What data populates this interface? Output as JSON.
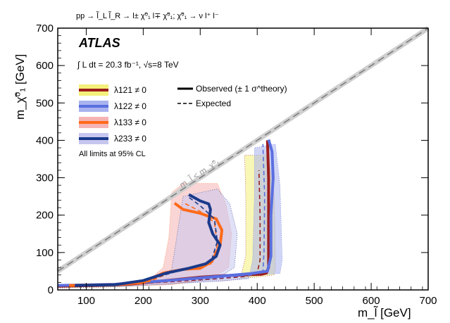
{
  "chart_data": {
    "type": "line",
    "title": "",
    "process": "pp → l̃_L l̃_R → l± χ̃⁰₁ l∓ χ̃⁰₁;   χ̃⁰₁ → ν l⁺ l⁻",
    "experiment": "ATLAS",
    "luminosity": "∫ L dt = 20.3 fb⁻¹, √s=8 TeV",
    "xlabel": "m_l̃ [GeV]",
    "ylabel": "m_χ̃⁰₁ [GeV]",
    "xlim": [
      50,
      700
    ],
    "ylim": [
      0,
      700
    ],
    "xticks": [
      100,
      200,
      300,
      400,
      500,
      600,
      700
    ],
    "yticks": [
      0,
      100,
      200,
      300,
      400,
      500,
      600,
      700
    ],
    "kinematic_label": "m_l̃ < m_χ̃⁰₁",
    "cl_note": "All limits at 95% CL",
    "legend_style": {
      "observed": "Observed (± 1 σ^theory)",
      "expected": "Expected"
    },
    "series": [
      {
        "name": "λ121 ≠ 0",
        "color": "#9b1c1c",
        "band_color": "#f4f07a",
        "observed": {
          "x": [
            50,
            120,
            180,
            220,
            260,
            300,
            340,
            372,
            392,
            408,
            416,
            420,
            420,
            420,
            418
          ],
          "y": [
            10,
            12,
            16,
            22,
            28,
            34,
            38,
            40,
            41,
            42,
            45,
            60,
            150,
            300,
            400
          ]
        },
        "expected": {
          "x": [
            50,
            150,
            250,
            330,
            380,
            400,
            405,
            405,
            403
          ],
          "y": [
            10,
            13,
            22,
            30,
            36,
            45,
            80,
            200,
            320
          ]
        },
        "band": {
          "x": [
            50,
            150,
            250,
            330,
            370,
            380,
            380,
            378,
            420,
            430,
            432,
            430,
            340,
            150,
            50
          ],
          "y": [
            5,
            8,
            16,
            24,
            28,
            90,
            250,
            360,
            360,
            250,
            60,
            40,
            24,
            10,
            8
          ]
        }
      },
      {
        "name": "λ122 ≠ 0",
        "color": "#5a6fe0",
        "band_color": "#a9b3ee",
        "observed": {
          "x": [
            50,
            150,
            250,
            330,
            390,
            418,
            424,
            424,
            428,
            426,
            420
          ],
          "y": [
            12,
            15,
            26,
            36,
            44,
            50,
            90,
            200,
            300,
            370,
            402
          ]
        },
        "expected": {
          "x": [
            50,
            150,
            250,
            330,
            390,
            410,
            412,
            413,
            410
          ],
          "y": [
            12,
            15,
            24,
            32,
            40,
            48,
            100,
            250,
            390
          ]
        },
        "band": {
          "x": [
            50,
            150,
            250,
            340,
            385,
            392,
            395,
            395,
            432,
            440,
            444,
            440,
            340,
            150,
            50
          ],
          "y": [
            6,
            9,
            16,
            24,
            30,
            80,
            250,
            380,
            390,
            280,
            80,
            44,
            34,
            16,
            10
          ]
        }
      },
      {
        "name": "λ133 ≠ 0",
        "color": "#ff6a1a",
        "band_color": "#f6b3b3",
        "observed": {
          "x": [
            70,
            150,
            200,
            235,
            270,
            300,
            320,
            335,
            338,
            328,
            300,
            270,
            255
          ],
          "y": [
            12,
            14,
            20,
            45,
            55,
            58,
            75,
            120,
            160,
            190,
            205,
            215,
            232
          ]
        },
        "expected": {
          "x": [
            70,
            150,
            210,
            250,
            290,
            320,
            330,
            325,
            300,
            272
          ],
          "y": [
            12,
            14,
            22,
            48,
            60,
            70,
            120,
            180,
            210,
            232
          ]
        },
        "band": {
          "x": [
            60,
            160,
            210,
            235,
            245,
            250,
            270,
            330,
            345,
            355,
            350,
            320,
            250,
            160,
            60
          ],
          "y": [
            8,
            10,
            26,
            60,
            140,
            260,
            285,
            285,
            230,
            150,
            60,
            30,
            14,
            10,
            8
          ]
        }
      },
      {
        "name": "λ233 ≠ 0",
        "color": "#1a3a8a",
        "band_color": "#c6c6ee",
        "observed": {
          "x": [
            80,
            150,
            200,
            240,
            280,
            310,
            328,
            335,
            322,
            315,
            318,
            315,
            300,
            280
          ],
          "y": [
            12,
            14,
            25,
            45,
            58,
            70,
            90,
            120,
            150,
            180,
            215,
            230,
            238,
            255
          ]
        },
        "expected": {
          "x": [
            80,
            150,
            210,
            260,
            300,
            320,
            330,
            325,
            300,
            278
          ],
          "y": [
            12,
            15,
            28,
            50,
            65,
            80,
            130,
            190,
            225,
            250
          ]
        },
        "band": {
          "x": [
            70,
            170,
            220,
            250,
            270,
            330,
            352,
            365,
            360,
            330,
            250,
            170,
            70
          ],
          "y": [
            8,
            12,
            30,
            55,
            250,
            270,
            230,
            150,
            60,
            30,
            16,
            10,
            8
          ]
        }
      }
    ]
  }
}
